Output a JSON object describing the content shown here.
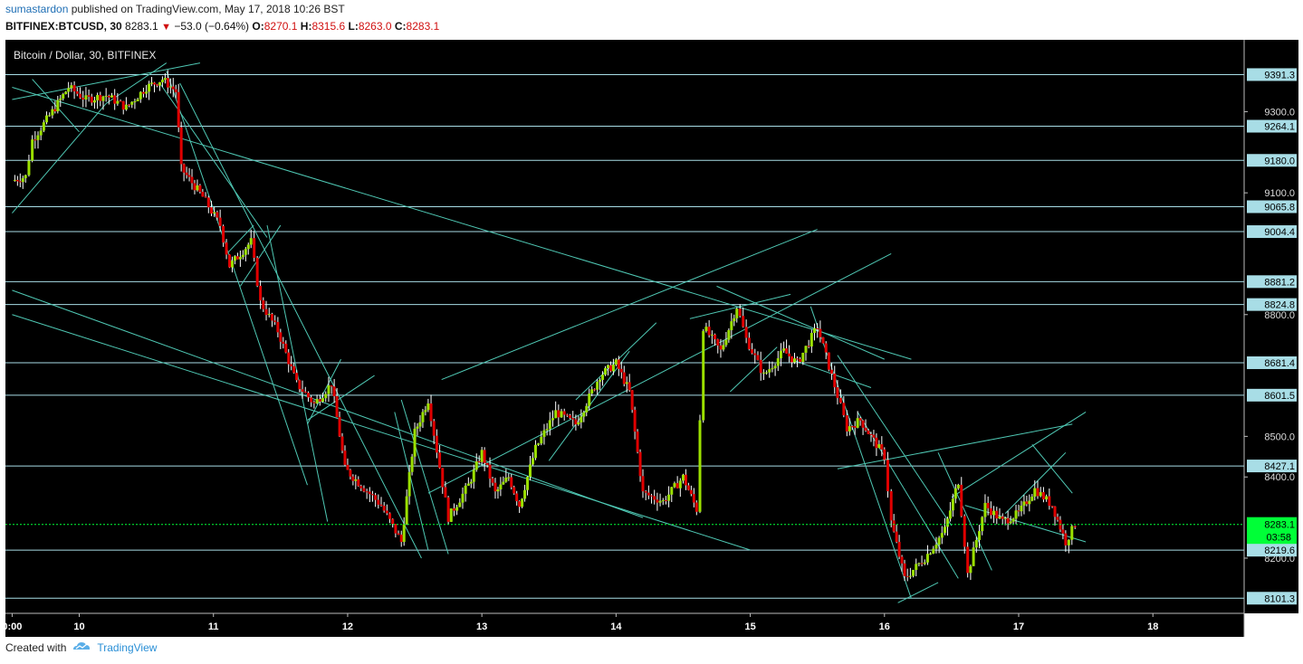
{
  "header": {
    "author": "sumastardon",
    "published_text": "published on TradingView.com, May 17, 2018 10:26 BST",
    "symbol": "BITFINEX:BTCUSD, 30",
    "last": "8283.1",
    "change": "−53.0 (−0.64%)",
    "o_label": "O:",
    "o_value": "8270.1",
    "h_label": "H:",
    "h_value": "8315.6",
    "l_label": "L:",
    "l_value": "8263.0",
    "c_label": "C:",
    "c_value": "8283.1"
  },
  "footer": {
    "created_with": "Created with",
    "brand": "TradingView",
    "icon": "tradingview-cloud-icon"
  },
  "chart_data": {
    "type": "candlestick",
    "title": "Bitcoin / Dollar, 30, BITFINEX",
    "xlabel": "",
    "ylabel": "",
    "xlim": [
      9.45,
      18.68
    ],
    "ylim": [
      8064,
      9477
    ],
    "grid": false,
    "background": "#000000",
    "colors": {
      "up": "#9be000",
      "down": "#e00000",
      "wick": "#ffffff",
      "trendline": "#4fc8b4",
      "hline": "#a8dde6",
      "last_price": "#00ff37"
    },
    "x_ticks": [
      {
        "label": "0:00",
        "x": 9.5
      },
      {
        "label": "10",
        "x": 10.0
      },
      {
        "label": "11",
        "x": 11.0
      },
      {
        "label": "12",
        "x": 12.0
      },
      {
        "label": "13",
        "x": 13.0
      },
      {
        "label": "14",
        "x": 14.0
      },
      {
        "label": "15",
        "x": 15.0
      },
      {
        "label": "16",
        "x": 16.0
      },
      {
        "label": "17",
        "x": 17.0
      },
      {
        "label": "18",
        "x": 18.0
      }
    ],
    "y_ticks": [
      "9300.0",
      "9100.0",
      "8800.0",
      "8500.0",
      "8400.0",
      "8200.0"
    ],
    "horizontal_levels": [
      "9391.3",
      "9264.1",
      "9180.0",
      "9065.8",
      "9004.4",
      "8881.2",
      "8824.8",
      "8681.4",
      "8601.5",
      "8427.1",
      "8219.6",
      "8101.3"
    ],
    "last_price": {
      "value": "8283.1",
      "countdown": "03:58"
    },
    "price_path": [
      [
        9.5,
        9130
      ],
      [
        9.6,
        9140
      ],
      [
        9.65,
        9230
      ],
      [
        9.8,
        9300
      ],
      [
        9.92,
        9360
      ],
      [
        10.05,
        9330
      ],
      [
        10.2,
        9340
      ],
      [
        10.35,
        9310
      ],
      [
        10.5,
        9360
      ],
      [
        10.62,
        9380
      ],
      [
        10.72,
        9350
      ],
      [
        10.76,
        9160
      ],
      [
        10.92,
        9090
      ],
      [
        11.05,
        9020
      ],
      [
        11.12,
        8920
      ],
      [
        11.28,
        8980
      ],
      [
        11.35,
        8830
      ],
      [
        11.48,
        8760
      ],
      [
        11.62,
        8630
      ],
      [
        11.75,
        8580
      ],
      [
        11.88,
        8630
      ],
      [
        11.98,
        8420
      ],
      [
        12.1,
        8380
      ],
      [
        12.25,
        8330
      ],
      [
        12.4,
        8240
      ],
      [
        12.5,
        8510
      ],
      [
        12.6,
        8590
      ],
      [
        12.75,
        8300
      ],
      [
        12.9,
        8380
      ],
      [
        13.0,
        8460
      ],
      [
        13.1,
        8360
      ],
      [
        13.2,
        8400
      ],
      [
        13.28,
        8330
      ],
      [
        13.4,
        8470
      ],
      [
        13.55,
        8560
      ],
      [
        13.7,
        8530
      ],
      [
        13.88,
        8650
      ],
      [
        14.0,
        8680
      ],
      [
        14.1,
        8610
      ],
      [
        14.2,
        8360
      ],
      [
        14.35,
        8340
      ],
      [
        14.5,
        8400
      ],
      [
        14.6,
        8320
      ],
      [
        14.65,
        8770
      ],
      [
        14.78,
        8710
      ],
      [
        14.9,
        8820
      ],
      [
        14.97,
        8740
      ],
      [
        15.1,
        8650
      ],
      [
        15.25,
        8710
      ],
      [
        15.35,
        8680
      ],
      [
        15.5,
        8770
      ],
      [
        15.65,
        8600
      ],
      [
        15.72,
        8520
      ],
      [
        15.82,
        8540
      ],
      [
        16.0,
        8450
      ],
      [
        16.05,
        8290
      ],
      [
        16.15,
        8150
      ],
      [
        16.3,
        8200
      ],
      [
        16.45,
        8270
      ],
      [
        16.55,
        8390
      ],
      [
        16.62,
        8160
      ],
      [
        16.75,
        8330
      ],
      [
        16.88,
        8290
      ],
      [
        17.0,
        8310
      ],
      [
        17.12,
        8370
      ],
      [
        17.25,
        8330
      ],
      [
        17.35,
        8240
      ],
      [
        17.42,
        8283
      ]
    ],
    "trendlines": [
      [
        9.5,
        9050,
        10.2,
        9320
      ],
      [
        9.65,
        9380,
        10.0,
        9250
      ],
      [
        9.5,
        9330,
        10.9,
        9420
      ],
      [
        10.2,
        9320,
        10.65,
        9420
      ],
      [
        9.5,
        9360,
        16.2,
        8690
      ],
      [
        10.65,
        9400,
        11.7,
        8380
      ],
      [
        10.6,
        9370,
        11.4,
        8990
      ],
      [
        11.2,
        8870,
        11.5,
        9020
      ],
      [
        11.1,
        8950,
        11.3,
        9020
      ],
      [
        11.4,
        9020,
        11.85,
        8290
      ],
      [
        10.75,
        9370,
        12.55,
        8200
      ],
      [
        9.5,
        8860,
        14.2,
        8300
      ],
      [
        9.5,
        8800,
        15.0,
        8220
      ],
      [
        11.7,
        8540,
        12.2,
        8650
      ],
      [
        11.7,
        8530,
        11.95,
        8690
      ],
      [
        12.35,
        8560,
        12.6,
        8220
      ],
      [
        12.4,
        8590,
        12.75,
        8210
      ],
      [
        12.7,
        8640,
        15.5,
        9010
      ],
      [
        12.6,
        8360,
        16.05,
        8950
      ],
      [
        13.5,
        8440,
        14.1,
        8710
      ],
      [
        13.7,
        8590,
        14.3,
        8780
      ],
      [
        14.85,
        8610,
        15.2,
        8720
      ],
      [
        14.55,
        8790,
        15.3,
        8850
      ],
      [
        14.75,
        8870,
        16.0,
        8690
      ],
      [
        15.3,
        8690,
        15.9,
        8620
      ],
      [
        15.45,
        8820,
        16.2,
        8100
      ],
      [
        15.8,
        8560,
        16.55,
        8150
      ],
      [
        15.65,
        8700,
        16.5,
        8280
      ],
      [
        16.1,
        8090,
        16.4,
        8140
      ],
      [
        16.4,
        8460,
        16.8,
        8170
      ],
      [
        16.5,
        8350,
        17.5,
        8560
      ],
      [
        15.65,
        8420,
        17.4,
        8530
      ],
      [
        16.6,
        8330,
        17.5,
        8240
      ],
      [
        16.9,
        8310,
        17.35,
        8460
      ],
      [
        17.1,
        8480,
        17.4,
        8360
      ]
    ]
  }
}
